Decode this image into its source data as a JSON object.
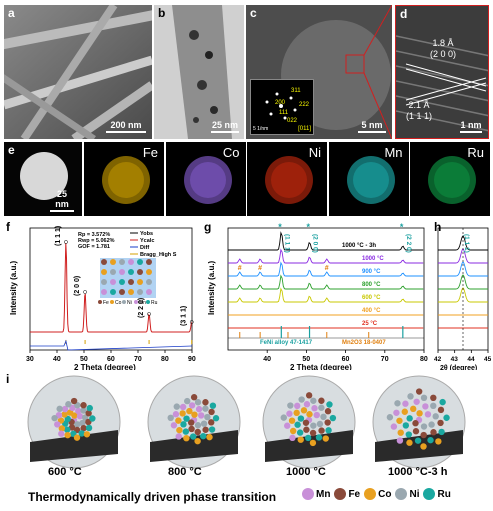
{
  "panels": {
    "a": {
      "letter": "a",
      "scale": "200 nm"
    },
    "b": {
      "letter": "b",
      "scale": "25 nm"
    },
    "c": {
      "letter": "c",
      "scale": "5 nm",
      "fft_scale": "5 1/nm",
      "fft_labels": [
        "311",
        "200",
        "111",
        "222",
        "022"
      ],
      "zone": "[011]"
    },
    "d": {
      "letter": "d",
      "scale": "1 nm",
      "d1": "1.8 Å",
      "d1_plane": "(2 0 0)",
      "d2": "2.1 Å",
      "d2_plane": "(1 1 1)"
    },
    "e": {
      "letter": "e",
      "scale": "25 nm",
      "maps": [
        {
          "el": "Fe",
          "color": "#e8b400"
        },
        {
          "el": "Co",
          "color": "#9a6cf0"
        },
        {
          "el": "Ni",
          "color": "#e03010"
        },
        {
          "el": "Mn",
          "color": "#20c8c8"
        },
        {
          "el": "Ru",
          "color": "#10b050"
        }
      ]
    }
  },
  "chart_data": [
    {
      "type": "line",
      "panel": "f",
      "ylabel": "Intensity (a.u.)",
      "xlabel": "2 Theta (degree)",
      "xlim": [
        30,
        90
      ],
      "xticks": [
        30,
        40,
        50,
        60,
        70,
        80,
        90
      ],
      "legend": [
        "Yobs",
        "Ycalc",
        "Diff",
        "Bragg_High S"
      ],
      "stats": [
        "Rp = 3.572%",
        "Rwp = 5.062%",
        "GOF = 1.781"
      ],
      "peaks": [
        {
          "x": 43.3,
          "label": "(1 1 1)"
        },
        {
          "x": 50.4,
          "label": "(2 0 0)"
        },
        {
          "x": 74.1,
          "label": "(2 2 0)"
        },
        {
          "x": 89.9,
          "label": "(3 1 1)"
        }
      ],
      "crystal_legend": [
        "Fe",
        "Co",
        "Ni",
        "Mn",
        "Ru"
      ]
    },
    {
      "type": "line",
      "panel": "g",
      "ylabel": "Intensity (a.u.)",
      "xlabel": "2 Theta (degree)",
      "xlim": [
        30,
        80
      ],
      "xticks": [
        40,
        50,
        60,
        70,
        80
      ],
      "series": [
        {
          "name": "1000 °C - 3h",
          "color": "#000000"
        },
        {
          "name": "1000 °C",
          "color": "#8a2be2"
        },
        {
          "name": "900 °C",
          "color": "#1e90ff"
        },
        {
          "name": "800 °C",
          "color": "#2ca02c"
        },
        {
          "name": "600 °C",
          "color": "#c8c800"
        },
        {
          "name": "400 °C",
          "color": "#f0a020"
        },
        {
          "name": "25 °C",
          "color": "#e03020"
        }
      ],
      "annotations": [
        "(1 1 1)",
        "(2 0 0)",
        "(2 2 0)"
      ],
      "refs": [
        "FeNi alloy 47-1417",
        "Mn2O3 18-0407"
      ]
    },
    {
      "type": "line",
      "panel": "h",
      "xlabel": "2θ (degree)",
      "xticks": [
        42,
        43,
        44,
        45
      ],
      "annotation": "(1 1 1)"
    }
  ],
  "i": {
    "letter": "i",
    "stages": [
      "600 °C",
      "800 °C",
      "1000 °C",
      "1000 °C-3 h"
    ],
    "caption": "Thermodynamically driven phase transition",
    "legend": [
      {
        "el": "Mn",
        "color": "#c890d8"
      },
      {
        "el": "Fe",
        "color": "#8a4a3a"
      },
      {
        "el": "Co",
        "color": "#e8a020"
      },
      {
        "el": "Ni",
        "color": "#9aa8b0"
      },
      {
        "el": "Ru",
        "color": "#1aa8a0"
      }
    ]
  }
}
